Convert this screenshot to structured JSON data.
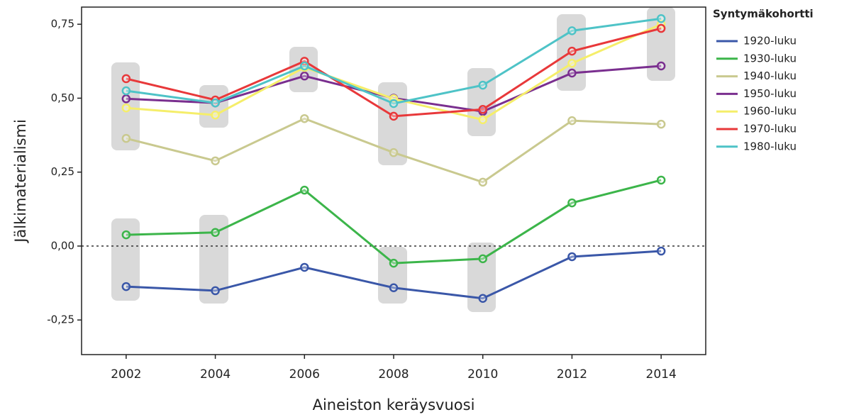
{
  "chart_data": {
    "type": "line",
    "x_label": "Aineiston keräysvuosi",
    "y_label": "Jälkimaterialismi",
    "legend_title": "Syntymäkohortti",
    "legend": "right",
    "x": [
      2002,
      2004,
      2006,
      2008,
      2010,
      2012,
      2014
    ],
    "xlim": [
      2001,
      2015
    ],
    "xticks": [
      2002,
      2004,
      2006,
      2008,
      2010,
      2012,
      2014
    ],
    "ylim": [
      -0.367,
      0.808
    ],
    "yticks": [
      {
        "value": -0.25,
        "label": "-0,25"
      },
      {
        "value": 0,
        "label": "0,00"
      },
      {
        "value": 0.25,
        "label": "0,25"
      },
      {
        "value": 0.5,
        "label": "0,50"
      },
      {
        "value": 0.75,
        "label": "0,75"
      }
    ],
    "reference_line": 0,
    "series": [
      {
        "name": "1920-luku",
        "color": "#3a57a8",
        "values": [
          -0.137,
          -0.151,
          -0.072,
          -0.141,
          -0.177,
          -0.036,
          -0.017
        ]
      },
      {
        "name": "1930-luku",
        "color": "#3cb54a",
        "values": [
          0.038,
          0.046,
          0.189,
          -0.058,
          -0.043,
          0.146,
          0.223
        ]
      },
      {
        "name": "1940-luku",
        "color": "#c9c98f",
        "values": [
          0.364,
          0.288,
          0.431,
          0.316,
          0.216,
          0.424,
          0.412
        ]
      },
      {
        "name": "1950-luku",
        "color": "#7a2f8f",
        "values": [
          0.498,
          0.484,
          0.575,
          0.5,
          0.455,
          0.585,
          0.609
        ]
      },
      {
        "name": "1960-luku",
        "color": "#f5ee6a",
        "values": [
          0.467,
          0.443,
          0.604,
          0.498,
          0.427,
          0.618,
          0.75
        ]
      },
      {
        "name": "1970-luku",
        "color": "#e8383a",
        "values": [
          0.566,
          0.494,
          0.625,
          0.439,
          0.462,
          0.659,
          0.736
        ]
      },
      {
        "name": "1980-luku",
        "color": "#4ec3c7",
        "values": [
          0.525,
          0.484,
          0.609,
          0.482,
          0.544,
          0.728,
          0.769
        ]
      }
    ]
  }
}
